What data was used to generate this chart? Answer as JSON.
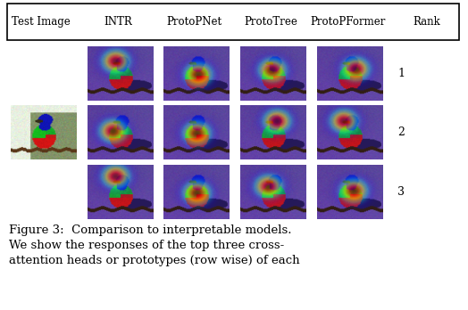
{
  "header_labels": [
    "Test Image",
    "INTR",
    "ProtoPNet",
    "ProtoTree",
    "ProtoPFormer",
    "Rank"
  ],
  "rank_labels": [
    "1",
    "2",
    "3"
  ],
  "background_color": "#ffffff",
  "font_size_header": 8.5,
  "font_size_rank": 9,
  "font_size_caption": 9.5,
  "caption_line1": "Figure 3:  Comparison to interpretable models.",
  "caption_line2": "We show the responses of the top three cross-",
  "caption_line3": "attention heads or prototypes (row wise) of each",
  "fig_width": 5.24,
  "fig_height": 3.48,
  "dpi": 100,
  "heatmap_configs": {
    "0_1": [
      0.42,
      0.28,
      1.8
    ],
    "0_2": [
      0.52,
      0.52,
      2.0
    ],
    "0_3": [
      0.48,
      0.44,
      1.6
    ],
    "0_4": [
      0.58,
      0.42,
      1.9
    ],
    "1_1": [
      0.38,
      0.48,
      1.7
    ],
    "1_2": [
      0.5,
      0.52,
      1.8
    ],
    "1_3": [
      0.55,
      0.3,
      1.5
    ],
    "1_4": [
      0.4,
      0.3,
      1.6
    ],
    "2_1": [
      0.42,
      0.22,
      1.8
    ],
    "2_2": [
      0.5,
      0.52,
      2.0
    ],
    "2_3": [
      0.42,
      0.4,
      1.4
    ],
    "2_4": [
      0.55,
      0.48,
      1.7
    ]
  }
}
